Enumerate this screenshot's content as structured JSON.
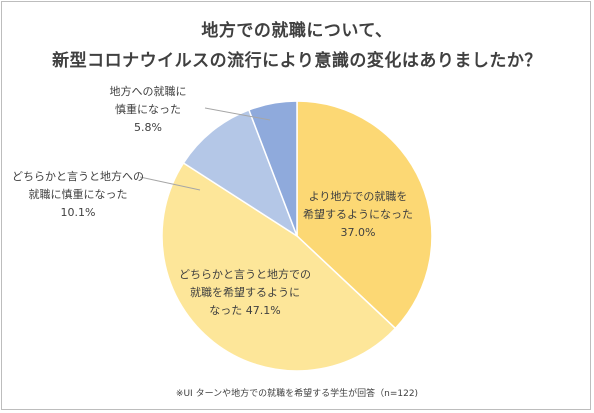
{
  "chart_data": {
    "type": "pie",
    "title_line1": "地方での就職について、",
    "title_line2": "新型コロナウイルスの流行により意識の変化はありましたか？",
    "slices": [
      {
        "label_lines": [
          "より地方での就職を",
          "希望するようになった"
        ],
        "value_text": "37.0%",
        "value": 37.0,
        "color": "#fcd874"
      },
      {
        "label_lines": [
          "どちらかと言うと地方での",
          "就職を希望するように"
        ],
        "value_text": "47.1%",
        "value": 47.1,
        "prefix": "なった",
        "color": "#fde699"
      },
      {
        "label_lines": [
          "どちらかと言うと地方への",
          "就職に慎重になった"
        ],
        "value_text": "10.1%",
        "value": 10.1,
        "color": "#b4c7e7"
      },
      {
        "label_lines": [
          "地方への就職に",
          "慎重になった"
        ],
        "value_text": "5.8%",
        "value": 5.8,
        "color": "#8faadc"
      }
    ],
    "footnote": "※UI ターンや地方での就職を希望する学生が回答（n=122)"
  }
}
